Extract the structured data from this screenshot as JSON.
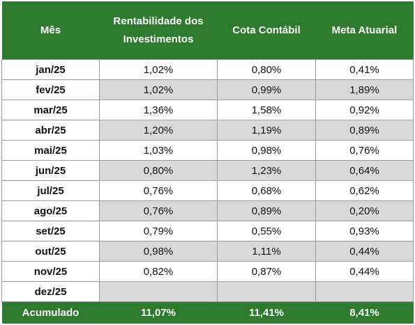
{
  "headers": [
    "Mês",
    "Rentabilidade dos Investimentos",
    "Cota Contábil",
    "Meta Atuarial"
  ],
  "rows": [
    {
      "month": "jan/25",
      "rent": "1,02%",
      "cota": "0,80%",
      "meta": "0,41%"
    },
    {
      "month": "fev/25",
      "rent": "1,02%",
      "cota": "0,99%",
      "meta": "1,89%"
    },
    {
      "month": "mar/25",
      "rent": "1,36%",
      "cota": "1,58%",
      "meta": "0,92%"
    },
    {
      "month": "abr/25",
      "rent": "1,20%",
      "cota": "1,19%",
      "meta": "0,89%"
    },
    {
      "month": "mai/25",
      "rent": "1,03%",
      "cota": "0,98%",
      "meta": "0,76%"
    },
    {
      "month": "jun/25",
      "rent": "0,80%",
      "cota": "1,23%",
      "meta": "0,64%"
    },
    {
      "month": "jul/25",
      "rent": "0,76%",
      "cota": "0,68%",
      "meta": "0,62%"
    },
    {
      "month": "ago/25",
      "rent": "0,76%",
      "cota": "0,89%",
      "meta": "0,20%"
    },
    {
      "month": "set/25",
      "rent": "0,79%",
      "cota": "0,55%",
      "meta": "0,93%"
    },
    {
      "month": "out/25",
      "rent": "0,98%",
      "cota": "1,11%",
      "meta": "0,44%"
    },
    {
      "month": "nov/25",
      "rent": "0,82%",
      "cota": "0,87%",
      "meta": "0,44%"
    },
    {
      "month": "dez/25",
      "rent": "",
      "cota": "",
      "meta": ""
    }
  ],
  "total": {
    "label": "Acumulado",
    "rent": "11,07%",
    "cota": "11,41%",
    "meta": "8,41%"
  }
}
